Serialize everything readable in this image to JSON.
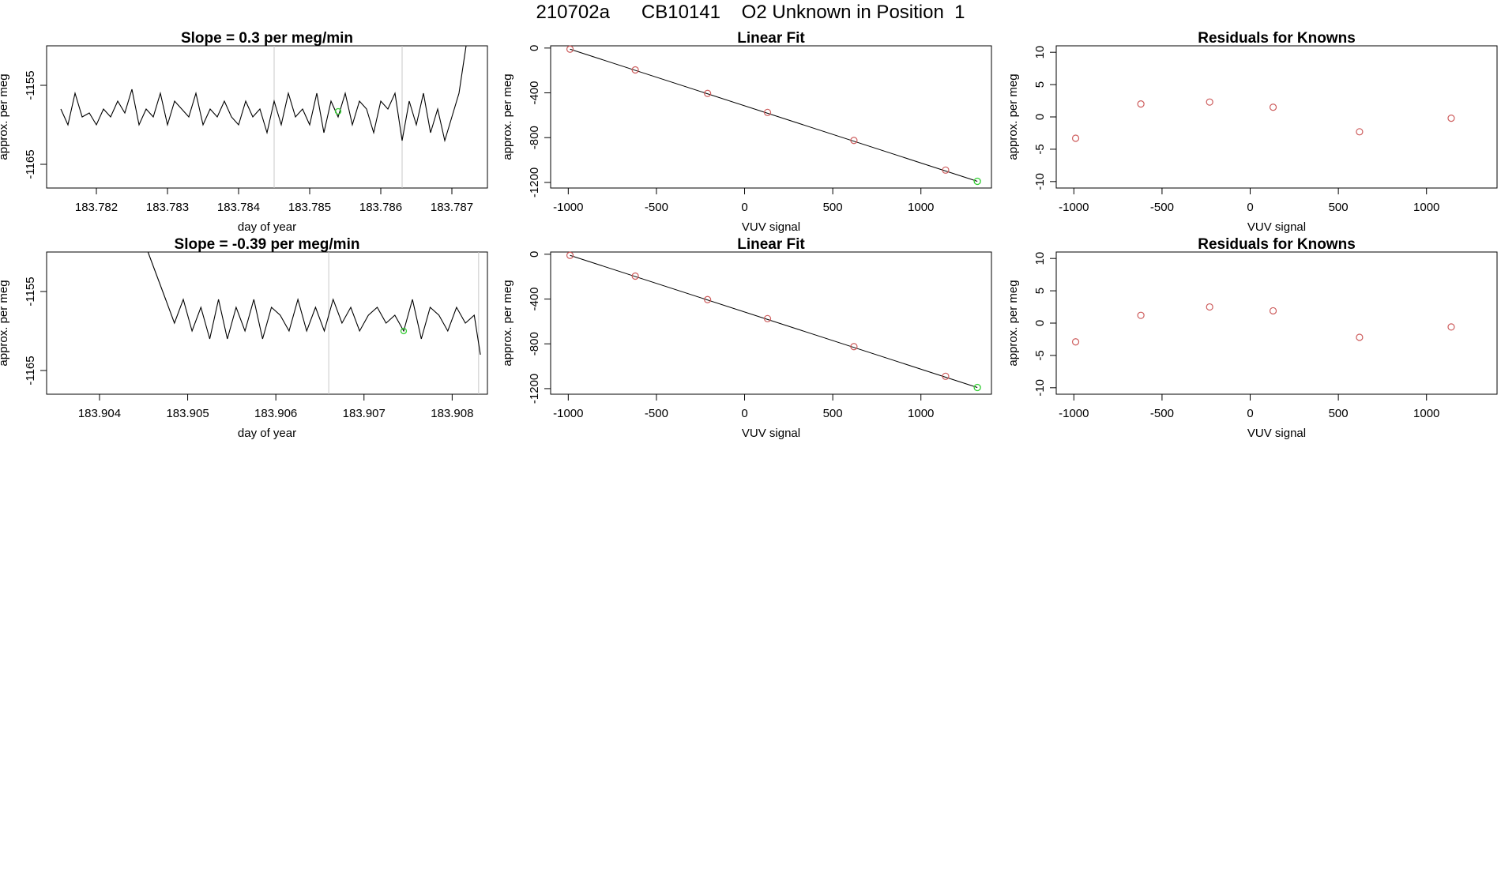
{
  "main_title": "210702a      CB10141    O2 Unknown in Position  1",
  "colors": {
    "line": "#000000",
    "known_point": "#cd5c5c",
    "unknown_point": "#32cd32",
    "boundary": "#c8c8c8"
  },
  "chart_data": [
    {
      "type": "line",
      "title": "Slope =  0.3  per meg/min",
      "xlabel": "day of year",
      "ylabel": "approx. per meg",
      "xlim": [
        183.7813,
        183.7875
      ],
      "ylim": [
        -1168,
        -1150
      ],
      "xticks": [
        "183.782",
        "183.783",
        "183.784",
        "183.785",
        "183.786",
        "183.787"
      ],
      "yticks": [
        "-1155",
        "-1165"
      ],
      "ytick_values": [
        -1155,
        -1165
      ],
      "boundaries": [
        183.7845,
        183.7863
      ],
      "series": [
        {
          "x": [
            183.7815,
            183.7816,
            183.7817,
            183.7818,
            183.7819,
            183.782,
            183.7821,
            183.7822,
            183.7823,
            183.7824,
            183.7825,
            183.7826,
            183.7827,
            183.7828,
            183.7829,
            183.783,
            183.7831,
            183.7832,
            183.7833,
            183.7834,
            183.7835,
            183.7836,
            183.7837,
            183.7838,
            183.7839,
            183.784,
            183.7841,
            183.7842,
            183.7843,
            183.7844,
            183.7845,
            183.7846,
            183.7847,
            183.7848,
            183.7849,
            183.785,
            183.7851,
            183.7852,
            183.7853,
            183.7854,
            183.7855,
            183.7856,
            183.7857,
            183.7858,
            183.7859,
            183.786,
            183.7861,
            183.7862,
            183.7863,
            183.7864,
            183.7865,
            183.7866,
            183.7867,
            183.7868,
            183.7869,
            183.787,
            183.7871,
            183.7872
          ],
          "y": [
            -1158,
            -1160,
            -1156,
            -1159,
            -1158.5,
            -1160,
            -1158,
            -1159,
            -1157,
            -1158.5,
            -1155.5,
            -1160,
            -1158,
            -1159,
            -1156,
            -1160,
            -1157,
            -1158,
            -1159,
            -1156,
            -1160,
            -1158,
            -1159,
            -1157,
            -1159,
            -1160,
            -1157,
            -1159,
            -1158,
            -1161,
            -1157,
            -1160,
            -1156,
            -1159,
            -1158,
            -1160,
            -1156,
            -1161,
            -1157,
            -1159,
            -1156,
            -1160,
            -1157,
            -1158,
            -1161,
            -1157,
            -1158,
            -1156,
            -1162,
            -1157,
            -1160,
            -1156,
            -1161,
            -1158,
            -1162,
            -1159,
            -1156,
            -1146
          ]
        }
      ],
      "highlight": {
        "x": 183.7854,
        "y": -1158.3
      }
    },
    {
      "type": "scatter",
      "title": "Linear Fit",
      "xlabel": "VUV signal",
      "ylabel": "approx. per meg",
      "xlim": [
        -1100,
        1400
      ],
      "ylim": [
        -1250,
        20
      ],
      "xticks": [
        "-1000",
        "-500",
        "0",
        "500",
        "1000"
      ],
      "xtick_values": [
        -1000,
        -500,
        0,
        500,
        1000
      ],
      "yticks": [
        "0",
        "-400",
        "-800",
        "-1200"
      ],
      "ytick_values": [
        0,
        -400,
        -800,
        -1200
      ],
      "fit_line": [
        [
          -990,
          -10
        ],
        [
          1320,
          -1190
        ]
      ],
      "known_points": [
        [
          -990,
          -10
        ],
        [
          -620,
          -195
        ],
        [
          -210,
          -405
        ],
        [
          130,
          -575
        ],
        [
          620,
          -825
        ],
        [
          1140,
          -1090
        ]
      ],
      "unknown_point": [
        1320,
        -1190
      ]
    },
    {
      "type": "scatter",
      "title": "Residuals for Knowns",
      "xlabel": "VUV signal",
      "ylabel": "approx. per meg",
      "xlim": [
        -1100,
        1400
      ],
      "ylim": [
        -11,
        11
      ],
      "xticks": [
        "-1000",
        "-500",
        "0",
        "500",
        "1000"
      ],
      "xtick_values": [
        -1000,
        -500,
        0,
        500,
        1000
      ],
      "yticks": [
        "10",
        "5",
        "0",
        "-5",
        "-10"
      ],
      "ytick_values": [
        10,
        5,
        0,
        -5,
        -10
      ],
      "known_points": [
        [
          -990,
          -3.3
        ],
        [
          -620,
          2.0
        ],
        [
          -230,
          2.3
        ],
        [
          130,
          1.5
        ],
        [
          620,
          -2.3
        ],
        [
          1140,
          -0.2
        ]
      ]
    },
    {
      "type": "line",
      "title": "Slope =  -0.39  per meg/min",
      "xlabel": "day of year",
      "ylabel": "approx. per meg",
      "xlim": [
        183.9034,
        183.9084
      ],
      "ylim": [
        -1168,
        -1150
      ],
      "xticks": [
        "183.904",
        "183.905",
        "183.906",
        "183.907",
        "183.908"
      ],
      "yticks": [
        "-1155",
        "-1165"
      ],
      "ytick_values": [
        -1155,
        -1165
      ],
      "boundaries": [
        183.9066,
        183.9083
      ],
      "series": [
        {
          "x": [
            183.90455,
            183.90465,
            183.90475,
            183.90485,
            183.90495,
            183.90505,
            183.90515,
            183.90525,
            183.90535,
            183.90545,
            183.90555,
            183.90565,
            183.90575,
            183.90585,
            183.90595,
            183.90605,
            183.90615,
            183.90625,
            183.90635,
            183.90645,
            183.90655,
            183.90665,
            183.90675,
            183.90685,
            183.90695,
            183.90705,
            183.90715,
            183.90725,
            183.90735,
            183.90745,
            183.90755,
            183.90765,
            183.90775,
            183.90785,
            183.90795,
            183.90805,
            183.90815,
            183.90825,
            183.90832
          ],
          "y": [
            -1150,
            -1153,
            -1156,
            -1159,
            -1156,
            -1160,
            -1157,
            -1161,
            -1156,
            -1161,
            -1157,
            -1160,
            -1156,
            -1161,
            -1157,
            -1158,
            -1160,
            -1156,
            -1160,
            -1157,
            -1160,
            -1156,
            -1159,
            -1157,
            -1160,
            -1158,
            -1157,
            -1159,
            -1158,
            -1160,
            -1156,
            -1161,
            -1157,
            -1158,
            -1160,
            -1157,
            -1159,
            -1158,
            -1163
          ]
        }
      ],
      "highlight": {
        "x": 183.90745,
        "y": -1160
      }
    },
    {
      "type": "scatter",
      "title": "Linear Fit",
      "xlabel": "VUV signal",
      "ylabel": "approx. per meg",
      "xlim": [
        -1100,
        1400
      ],
      "ylim": [
        -1250,
        20
      ],
      "xticks": [
        "-1000",
        "-500",
        "0",
        "500",
        "1000"
      ],
      "xtick_values": [
        -1000,
        -500,
        0,
        500,
        1000
      ],
      "yticks": [
        "0",
        "-400",
        "-800",
        "-1200"
      ],
      "ytick_values": [
        0,
        -400,
        -800,
        -1200
      ],
      "fit_line": [
        [
          -990,
          -10
        ],
        [
          1320,
          -1190
        ]
      ],
      "known_points": [
        [
          -990,
          -10
        ],
        [
          -620,
          -195
        ],
        [
          -210,
          -405
        ],
        [
          130,
          -575
        ],
        [
          620,
          -825
        ],
        [
          1140,
          -1090
        ]
      ],
      "unknown_point": [
        1320,
        -1190
      ]
    },
    {
      "type": "scatter",
      "title": "Residuals for Knowns",
      "xlabel": "VUV signal",
      "ylabel": "approx. per meg",
      "xlim": [
        -1100,
        1400
      ],
      "ylim": [
        -11,
        11
      ],
      "xticks": [
        "-1000",
        "-500",
        "0",
        "500",
        "1000"
      ],
      "xtick_values": [
        -1000,
        -500,
        0,
        500,
        1000
      ],
      "yticks": [
        "10",
        "5",
        "0",
        "-5",
        "-10"
      ],
      "ytick_values": [
        10,
        5,
        0,
        -5,
        -10
      ],
      "known_points": [
        [
          -990,
          -2.9
        ],
        [
          -620,
          1.2
        ],
        [
          -230,
          2.5
        ],
        [
          130,
          1.9
        ],
        [
          620,
          -2.2
        ],
        [
          1140,
          -0.6
        ]
      ]
    }
  ]
}
